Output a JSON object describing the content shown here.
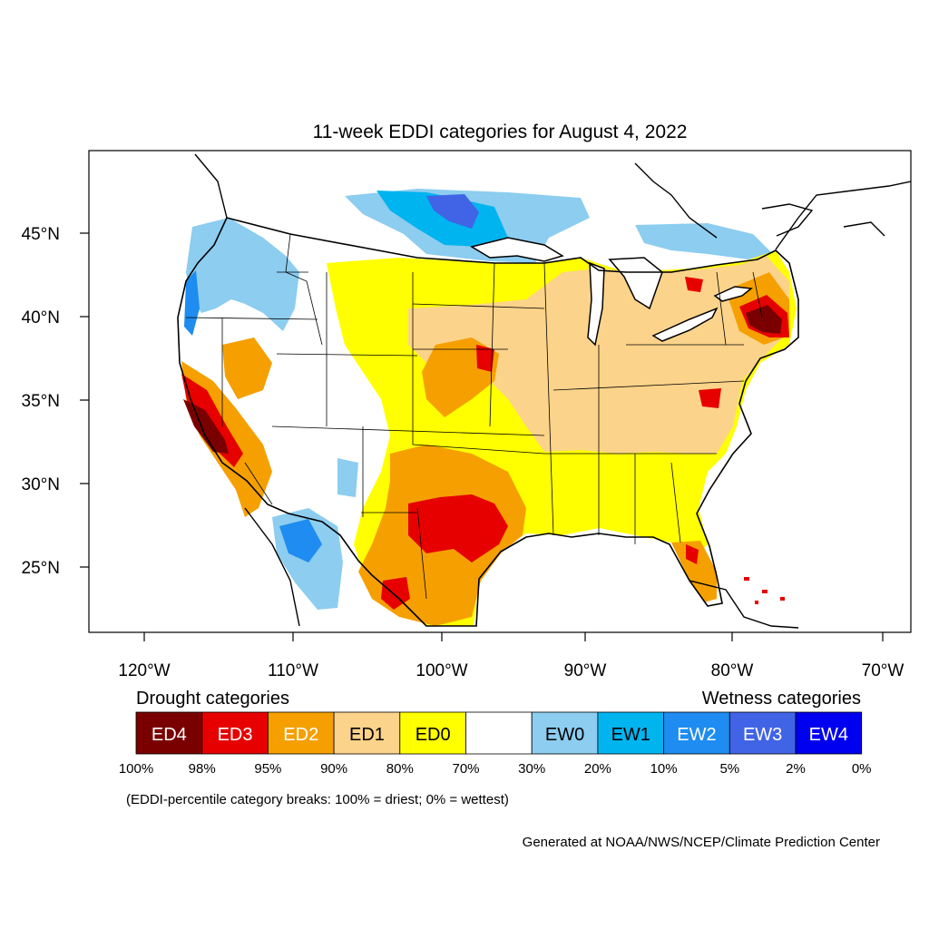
{
  "title": "11-week EDDI categories for August 4, 2022",
  "lat_labels": [
    "45°N",
    "40°N",
    "35°N",
    "30°N",
    "25°N"
  ],
  "lon_labels": [
    "120°W",
    "110°W",
    "100°W",
    "90°W",
    "80°W",
    "70°W"
  ],
  "legend": {
    "drought_heading": "Drought categories",
    "wetness_heading": "Wetness categories",
    "categories": [
      {
        "label": "ED4",
        "color": "#7a0000"
      },
      {
        "label": "ED3",
        "color": "#e60000"
      },
      {
        "label": "ED2",
        "color": "#f5a000"
      },
      {
        "label": "ED1",
        "color": "#fcd38a"
      },
      {
        "label": "ED0",
        "color": "#ffff00"
      },
      {
        "label": "",
        "color": "#ffffff"
      },
      {
        "label": "EW0",
        "color": "#8ccdf0"
      },
      {
        "label": "EW1",
        "color": "#00b4f0"
      },
      {
        "label": "EW2",
        "color": "#1e8cf0"
      },
      {
        "label": "EW3",
        "color": "#4164e6"
      },
      {
        "label": "EW4",
        "color": "#0000f0"
      }
    ],
    "breaks": [
      "100%",
      "98%",
      "95%",
      "90%",
      "80%",
      "70%",
      "30%",
      "20%",
      "10%",
      "5%",
      "2%",
      "0%"
    ],
    "note": "(EDDI-percentile category breaks: 100% = driest; 0% = wettest)"
  },
  "credit": "Generated at NOAA/NWS/NCEP/Climate Prediction Center"
}
